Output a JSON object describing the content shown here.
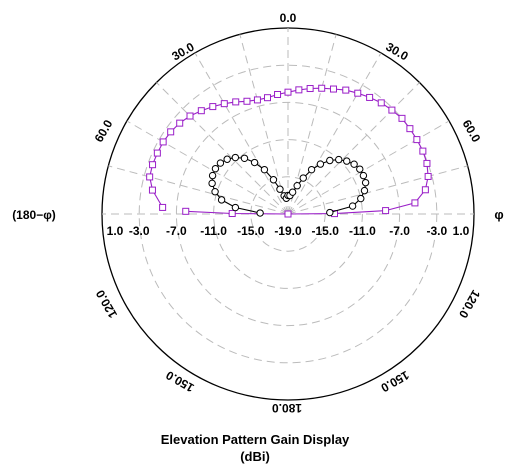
{
  "chart_data": {
    "type": "polar",
    "title": "Elevation Pattern Gain Display",
    "unit_label": "(dBi)",
    "angle_labels": {
      "top": "0.0",
      "upper_left": "30.0",
      "upper_right": "30.0",
      "left_upper": "60.0",
      "right_upper": "60.0",
      "left_lower": "120.0",
      "right_lower": "120.0",
      "bottom_left": "150.0",
      "bottom_right": "150.0",
      "bottom": "180.0",
      "left_axis": "(180−φ)",
      "right_axis": "φ"
    },
    "radial_ticks_left": [
      "1.0",
      "-3.0",
      "-7.0",
      "-11.0",
      "-15.0",
      "-19.0"
    ],
    "radial_ticks_right": [
      "-15.0",
      "-11.0",
      "-7.0",
      "-3.0",
      "1.0"
    ],
    "radial_range_dbi": [
      -19,
      1
    ],
    "radial_step_dbi": 4,
    "grid": true,
    "series": [
      {
        "color": "#9a1fc8",
        "marker": "square",
        "points": [
          {
            "theta": -87,
            "gain": -5.5
          },
          {
            "theta": -80,
            "gain": -4.2
          },
          {
            "theta": -75,
            "gain": -3.6
          },
          {
            "theta": -70,
            "gain": -3.5
          },
          {
            "theta": -65,
            "gain": -3.5
          },
          {
            "theta": -60,
            "gain": -3.5
          },
          {
            "theta": -55,
            "gain": -3.6
          },
          {
            "theta": -50,
            "gain": -3.8
          },
          {
            "theta": -45,
            "gain": -4.1
          },
          {
            "theta": -40,
            "gain": -4.5
          },
          {
            "theta": -35,
            "gain": -4.9
          },
          {
            "theta": -30,
            "gain": -5.3
          },
          {
            "theta": -25,
            "gain": -5.7
          },
          {
            "theta": -20,
            "gain": -6.1
          },
          {
            "theta": -15,
            "gain": -6.3
          },
          {
            "theta": -10,
            "gain": -6.3
          },
          {
            "theta": -5,
            "gain": -6.1
          },
          {
            "theta": 0,
            "gain": -5.9
          },
          {
            "theta": 5,
            "gain": -5.6
          },
          {
            "theta": 10,
            "gain": -5.3
          },
          {
            "theta": 15,
            "gain": -5.0
          },
          {
            "theta": 20,
            "gain": -4.7
          },
          {
            "theta": 25,
            "gain": -4.3
          },
          {
            "theta": 30,
            "gain": -4.0
          },
          {
            "theta": 35,
            "gain": -3.7
          },
          {
            "theta": 40,
            "gain": -3.4
          },
          {
            "theta": 45,
            "gain": -3.2
          },
          {
            "theta": 50,
            "gain": -3.0
          },
          {
            "theta": 55,
            "gain": -3.0
          },
          {
            "theta": 60,
            "gain": -3.0
          },
          {
            "theta": 65,
            "gain": -3.0
          },
          {
            "theta": 70,
            "gain": -3.1
          },
          {
            "theta": 75,
            "gain": -3.4
          },
          {
            "theta": 80,
            "gain": -4.0
          },
          {
            "theta": 85,
            "gain": -5.3
          },
          {
            "theta": 88,
            "gain": -8.5
          },
          {
            "theta": 89.5,
            "gain": -14.0
          },
          {
            "theta": 90,
            "gain": -19.0
          },
          {
            "theta": -90,
            "gain": -19.0
          },
          {
            "theta": -89.5,
            "gain": -13.0
          },
          {
            "theta": -88.5,
            "gain": -8.0
          }
        ]
      },
      {
        "color": "#000000",
        "marker": "circle",
        "points": [
          {
            "theta": -88,
            "gain": -16.0
          },
          {
            "theta": -83,
            "gain": -13.3
          },
          {
            "theta": -78,
            "gain": -11.7
          },
          {
            "theta": -73,
            "gain": -10.8
          },
          {
            "theta": -68,
            "gain": -10.2
          },
          {
            "theta": -63,
            "gain": -9.9
          },
          {
            "theta": -58,
            "gain": -9.8
          },
          {
            "theta": -53,
            "gain": -9.9
          },
          {
            "theta": -48,
            "gain": -10.2
          },
          {
            "theta": -43,
            "gain": -10.7
          },
          {
            "theta": -38,
            "gain": -11.4
          },
          {
            "theta": -33,
            "gain": -12.4
          },
          {
            "theta": -28,
            "gain": -13.6
          },
          {
            "theta": -23,
            "gain": -15.0
          },
          {
            "theta": -18,
            "gain": -16.2
          },
          {
            "theta": -12,
            "gain": -17.0
          },
          {
            "theta": -6,
            "gain": -17.3
          },
          {
            "theta": 0,
            "gain": -17.0
          },
          {
            "theta": 6,
            "gain": -17.0
          },
          {
            "theta": 12,
            "gain": -16.6
          },
          {
            "theta": 18,
            "gain": -15.8
          },
          {
            "theta": 23,
            "gain": -14.8
          },
          {
            "theta": 28,
            "gain": -13.6
          },
          {
            "theta": 33,
            "gain": -12.6
          },
          {
            "theta": 38,
            "gain": -11.7
          },
          {
            "theta": 43,
            "gain": -11.0
          },
          {
            "theta": 48,
            "gain": -10.5
          },
          {
            "theta": 53,
            "gain": -10.1
          },
          {
            "theta": 58,
            "gain": -9.9
          },
          {
            "theta": 63,
            "gain": -9.9
          },
          {
            "theta": 68,
            "gain": -10.0
          },
          {
            "theta": 73,
            "gain": -10.4
          },
          {
            "theta": 78,
            "gain": -11.0
          },
          {
            "theta": 83,
            "gain": -12.0
          },
          {
            "theta": 88,
            "gain": -14.5
          }
        ]
      }
    ]
  }
}
